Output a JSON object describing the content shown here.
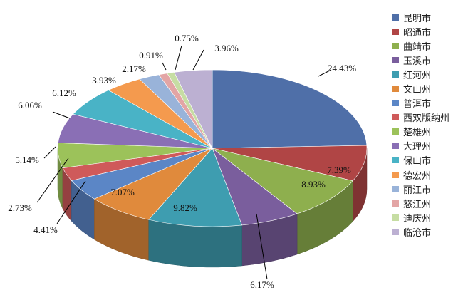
{
  "chart_data": {
    "type": "pie",
    "three_d": true,
    "legend_position": "right",
    "categories": [
      "昆明市",
      "昭通市",
      "曲靖市",
      "玉溪市",
      "红河州",
      "文山州",
      "普洱市",
      "西双版纳州",
      "楚雄州",
      "大理州",
      "保山市",
      "德宏州",
      "丽江市",
      "怒江州",
      "迪庆州",
      "临沧市"
    ],
    "values": [
      24.43,
      7.39,
      8.93,
      6.17,
      9.82,
      7.07,
      4.41,
      2.73,
      5.14,
      6.06,
      6.12,
      3.93,
      2.17,
      0.91,
      0.75,
      3.96
    ],
    "value_labels": [
      "24.43%",
      "7.39%",
      "8.93%",
      "6.17%",
      "9.82%",
      "7.07%",
      "4.41%",
      "2.73%",
      "5.14%",
      "6.06%",
      "6.12%",
      "3.93%",
      "2.17%",
      "0.91%",
      "0.75%",
      "3.96%"
    ],
    "colors": [
      "#4F6FA8",
      "#B04545",
      "#8EAF4E",
      "#7A5E9D",
      "#3E9DB0",
      "#E08A3C",
      "#5B86C6",
      "#CF5A5A",
      "#9CC25A",
      "#8A6FB5",
      "#49B3C6",
      "#F49A4E",
      "#99B3D9",
      "#E3A5A5",
      "#C6DDA3",
      "#BCB0D2"
    ]
  }
}
